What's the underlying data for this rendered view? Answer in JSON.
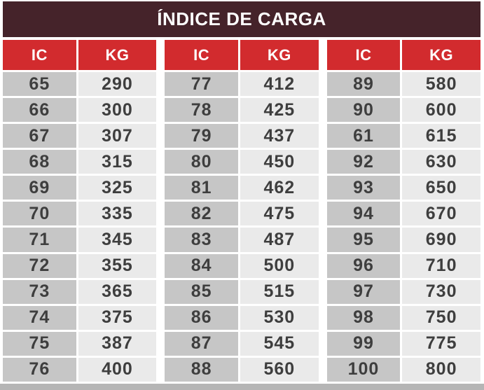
{
  "title": "ÍNDICE DE CARGA",
  "header": {
    "ic": "IC",
    "kg": "KG"
  },
  "colors": {
    "title_bar": "#45232A",
    "header_red": "#D22B2E",
    "ic_column_bg": "#C6C6C6",
    "kg_column_bg": "#EAEAEA",
    "cell_text": "#3E3E3E",
    "bottom_strip": "#B5B5B5",
    "background": "#FFFFFF"
  },
  "groups": [
    {
      "rows": [
        {
          "ic": "65",
          "kg": "290"
        },
        {
          "ic": "66",
          "kg": "300"
        },
        {
          "ic": "67",
          "kg": "307"
        },
        {
          "ic": "68",
          "kg": "315"
        },
        {
          "ic": "69",
          "kg": "325"
        },
        {
          "ic": "70",
          "kg": "335"
        },
        {
          "ic": "71",
          "kg": "345"
        },
        {
          "ic": "72",
          "kg": "355"
        },
        {
          "ic": "73",
          "kg": "365"
        },
        {
          "ic": "74",
          "kg": "375"
        },
        {
          "ic": "75",
          "kg": "387"
        },
        {
          "ic": "76",
          "kg": "400"
        }
      ]
    },
    {
      "rows": [
        {
          "ic": "77",
          "kg": "412"
        },
        {
          "ic": "78",
          "kg": "425"
        },
        {
          "ic": "79",
          "kg": "437"
        },
        {
          "ic": "80",
          "kg": "450"
        },
        {
          "ic": "81",
          "kg": "462"
        },
        {
          "ic": "82",
          "kg": "475"
        },
        {
          "ic": "83",
          "kg": "487"
        },
        {
          "ic": "84",
          "kg": "500"
        },
        {
          "ic": "85",
          "kg": "515"
        },
        {
          "ic": "86",
          "kg": "530"
        },
        {
          "ic": "87",
          "kg": "545"
        },
        {
          "ic": "88",
          "kg": "560"
        }
      ]
    },
    {
      "rows": [
        {
          "ic": "89",
          "kg": "580"
        },
        {
          "ic": "90",
          "kg": "600"
        },
        {
          "ic": "61",
          "kg": "615"
        },
        {
          "ic": "92",
          "kg": "630"
        },
        {
          "ic": "93",
          "kg": "650"
        },
        {
          "ic": "94",
          "kg": "670"
        },
        {
          "ic": "95",
          "kg": "690"
        },
        {
          "ic": "96",
          "kg": "710"
        },
        {
          "ic": "97",
          "kg": "730"
        },
        {
          "ic": "98",
          "kg": "750"
        },
        {
          "ic": "99",
          "kg": "775"
        },
        {
          "ic": "100",
          "kg": "800"
        }
      ]
    }
  ],
  "chart_data": {
    "type": "table",
    "title": "ÍNDICE DE CARGA",
    "columns": [
      "IC",
      "KG",
      "IC",
      "KG",
      "IC",
      "KG"
    ],
    "rows": [
      [
        65,
        290,
        77,
        412,
        89,
        580
      ],
      [
        66,
        300,
        78,
        425,
        90,
        600
      ],
      [
        67,
        307,
        79,
        437,
        61,
        615
      ],
      [
        68,
        315,
        80,
        450,
        92,
        630
      ],
      [
        69,
        325,
        81,
        462,
        93,
        650
      ],
      [
        70,
        335,
        82,
        475,
        94,
        670
      ],
      [
        71,
        345,
        83,
        487,
        95,
        690
      ],
      [
        72,
        355,
        84,
        500,
        96,
        710
      ],
      [
        73,
        365,
        85,
        515,
        97,
        730
      ],
      [
        74,
        375,
        86,
        530,
        98,
        750
      ],
      [
        75,
        387,
        87,
        545,
        99,
        775
      ],
      [
        76,
        400,
        88,
        560,
        100,
        800
      ]
    ]
  }
}
